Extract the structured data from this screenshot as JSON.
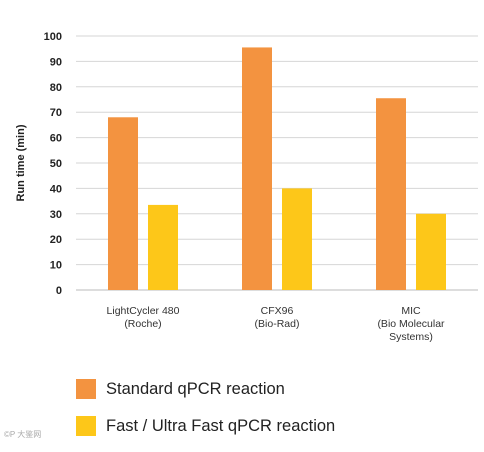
{
  "chart_data": {
    "type": "bar",
    "categories": [
      [
        "LightCycler 480",
        "(Roche)"
      ],
      [
        "CFX96",
        "(Bio-Rad)"
      ],
      [
        "MIC",
        "(Bio Molecular",
        "Systems)"
      ]
    ],
    "series": [
      {
        "name": "Standard qPCR reaction",
        "values": [
          68,
          95.5,
          75.5
        ],
        "color": "#f39340"
      },
      {
        "name": "Fast / Ultra Fast qPCR reaction",
        "values": [
          33.5,
          40,
          30
        ],
        "color": "#fdc719"
      }
    ],
    "ylabel": "Run time (min)",
    "ylim": [
      0,
      100
    ],
    "yticks": [
      0,
      10,
      20,
      30,
      40,
      50,
      60,
      70,
      80,
      90,
      100
    ],
    "grid": true,
    "legend_position": "bottom"
  },
  "watermark": "©P 大鉴网"
}
